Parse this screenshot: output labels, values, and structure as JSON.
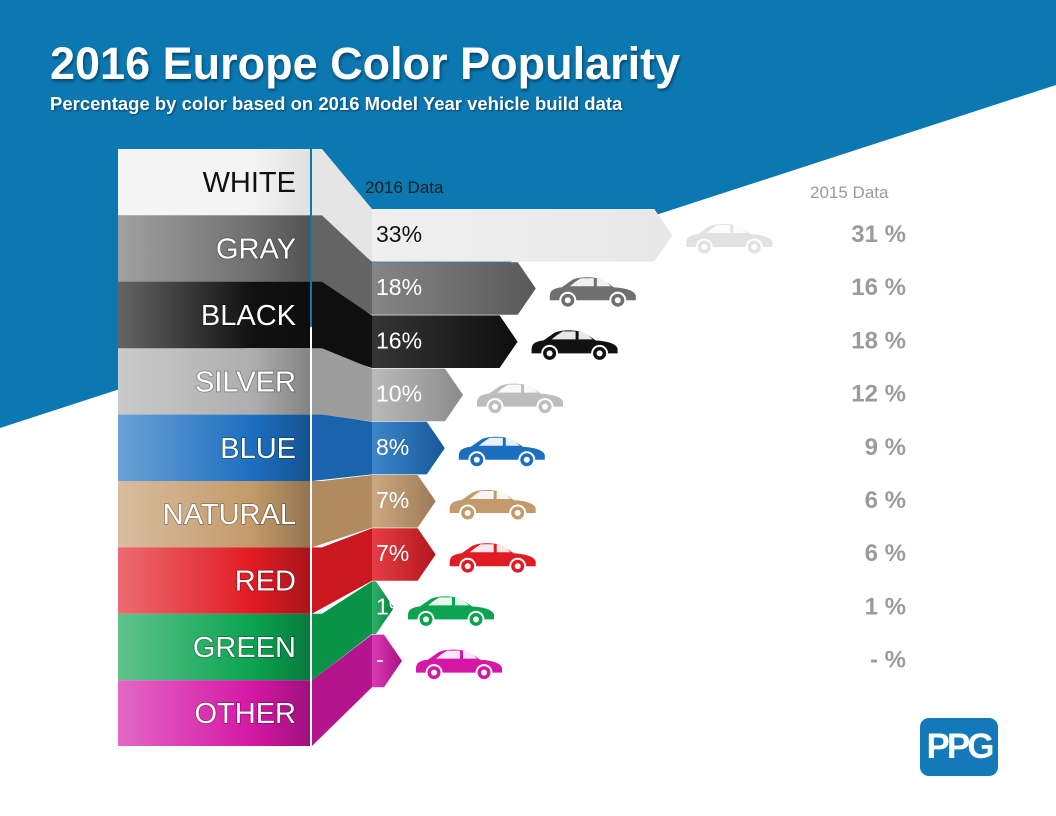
{
  "title": "2016 Europe Color Popularity",
  "subtitle": "Percentage by color based on 2016 Model Year vehicle build data",
  "logo_text": "PPG",
  "colors": {
    "background_blue": "#0b78b2",
    "white": "#f4f4f4",
    "gray": "#6f6f6f",
    "black": "#111111",
    "silver": "#aeaeae",
    "blue": "#1c6fc0",
    "natural": "#c39a6b",
    "red": "#e11b24",
    "green": "#0aa350",
    "other": "#d417a5",
    "value_2015": "#9b9b9b"
  },
  "chart_data": {
    "type": "bar",
    "title": "2016 Europe Color Popularity",
    "subtitle": "Percentage by color based on 2016 Model Year vehicle build data",
    "categories": [
      "WHITE",
      "GRAY",
      "BLACK",
      "SILVER",
      "BLUE",
      "NATURAL",
      "RED",
      "GREEN",
      "OTHER"
    ],
    "series": [
      {
        "name": "2016 Data",
        "values": [
          33,
          18,
          16,
          10,
          8,
          7,
          7,
          1,
          null
        ],
        "labels": [
          "33%",
          "18%",
          "16%",
          "10%",
          "8%",
          "7%",
          "7%",
          "1%",
          "-"
        ]
      },
      {
        "name": "2015 Data",
        "values": [
          31,
          16,
          18,
          12,
          9,
          6,
          6,
          1,
          null
        ],
        "labels": [
          "31 %",
          "16 %",
          "18 %",
          "12 %",
          "9 %",
          "6 %",
          "6 %",
          "1 %",
          "- %"
        ]
      }
    ],
    "legend": [
      "2016 Data",
      "2015 Data"
    ],
    "xlabel": "",
    "ylabel": "",
    "grid": false
  }
}
